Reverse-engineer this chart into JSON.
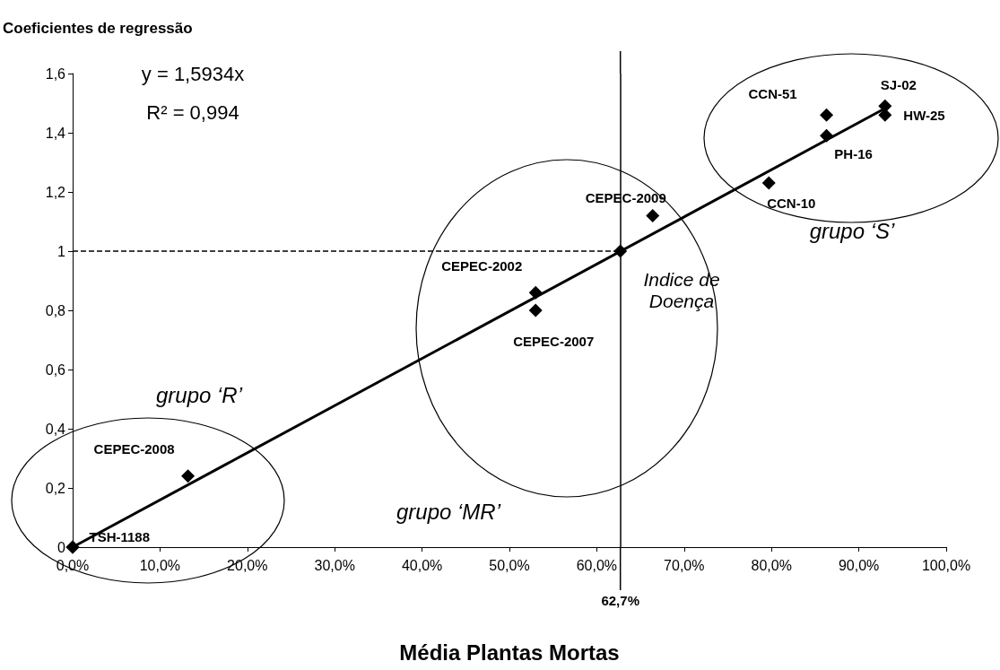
{
  "chart_data": {
    "type": "scatter",
    "ylabel": "Coeficientes de regressão",
    "xlabel": "Média Plantas Mortas",
    "annotations": [
      "y = 1,5934x",
      "R² = 0,994",
      "grupo ‘R’",
      "grupo ‘MR’",
      "grupo ‘S’",
      "Indice de Doença"
    ],
    "marker": "diamond",
    "xlim": [
      0,
      100
    ],
    "xticks": [
      {
        "value": 0,
        "label": "0,0%"
      },
      {
        "value": 10,
        "label": "10,0%"
      },
      {
        "value": 20,
        "label": "20,0%"
      },
      {
        "value": 30,
        "label": "30,0%"
      },
      {
        "value": 40,
        "label": "40,0%"
      },
      {
        "value": 50,
        "label": "50,0%"
      },
      {
        "value": 60,
        "label": "60,0%"
      },
      {
        "value": 70,
        "label": "70,0%"
      },
      {
        "value": 80,
        "label": "80,0%"
      },
      {
        "value": 90,
        "label": "90,0%"
      },
      {
        "value": 100,
        "label": "100,0%"
      }
    ],
    "ylim": [
      0,
      1.6
    ],
    "yticks": [
      0,
      {
        "value": 0.2,
        "label": "0,2"
      },
      {
        "value": 0.4,
        "label": "0,4"
      },
      {
        "value": 0.6,
        "label": "0,6"
      },
      {
        "value": 0.8,
        "label": "0,8"
      },
      1,
      {
        "value": 1.2,
        "label": "1,2"
      },
      {
        "value": 1.4,
        "label": "1,4"
      },
      {
        "value": 1.6,
        "label": "1,6"
      }
    ],
    "grid": false,
    "legend": false,
    "ref_lines": [
      {
        "axis": "x",
        "value": 62.7,
        "label": "62,7%",
        "color": "#000000",
        "line_style": "solid"
      },
      {
        "axis": "y",
        "value": 1,
        "label": null,
        "color": "#000000",
        "line_style": "dashed"
      }
    ],
    "series": [
      {
        "type": "line",
        "color": "#000000",
        "marker": "none",
        "line_style": "solid",
        "x": [
          0,
          93.3
        ],
        "values": [
          0,
          1.487
        ]
      },
      {
        "color": "#000000",
        "x": [
          0,
          62.7
        ],
        "values": [
          0,
          1.0
        ]
      },
      {
        "name": "TSH-1188",
        "color": "#000000",
        "x": [
          0
        ],
        "values": [
          0
        ]
      },
      {
        "name": "CEPEC-2008",
        "color": "#000000",
        "x": [
          13.2
        ],
        "values": [
          0.24
        ]
      },
      {
        "name": "CEPEC-2002",
        "color": "#000000",
        "x": [
          53.0
        ],
        "values": [
          0.86
        ]
      },
      {
        "name": "CEPEC-2007",
        "color": "#000000",
        "x": [
          53.0
        ],
        "values": [
          0.8
        ]
      },
      {
        "name": "CEPEC-2009",
        "color": "#000000",
        "x": [
          66.4
        ],
        "values": [
          1.12
        ]
      },
      {
        "name": "CCN-10",
        "color": "#000000",
        "x": [
          79.7
        ],
        "values": [
          1.23
        ]
      },
      {
        "name": "PH-16",
        "color": "#000000",
        "x": [
          86.3
        ],
        "values": [
          1.39
        ]
      },
      {
        "name": "CCN-51",
        "color": "#000000",
        "x": [
          86.3
        ],
        "values": [
          1.46
        ]
      },
      {
        "name": "SJ-02",
        "color": "#000000",
        "x": [
          93.0
        ],
        "values": [
          1.49
        ]
      },
      {
        "name": "HW-25",
        "color": "#000000",
        "x": [
          93.0
        ],
        "values": [
          1.46
        ]
      }
    ]
  }
}
